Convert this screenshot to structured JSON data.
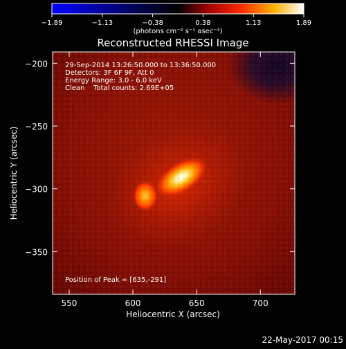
{
  "chart_data": {
    "type": "heatmap",
    "title": "Reconstructed RHESSI Image",
    "xlabel": "Heliocentric X (arcsec)",
    "ylabel": "Heliocentric Y (arcsec)",
    "xlim": [
      537,
      727
    ],
    "ylim": [
      -384,
      -191
    ],
    "x_ticks": [
      550,
      600,
      650,
      700
    ],
    "y_ticks": [
      -200,
      -250,
      -300,
      -350
    ],
    "x_tick_labels": [
      "550",
      "600",
      "650",
      "700"
    ],
    "y_tick_labels": [
      "−200",
      "−250",
      "−300",
      "−350"
    ],
    "colorbar": {
      "range": [
        -1.89,
        1.89
      ],
      "tick_labels": [
        "−1.89",
        "−1.13",
        "−0.38",
        "0.38",
        "1.13",
        "1.89"
      ],
      "units": "(photons cm⁻² s⁻¹ asec⁻²)",
      "colormap": "blue-black-red-yellow-white"
    },
    "annotations": [
      "29-Sep-2014 13:26:50.000 to 13:36:50.000",
      "Detectors: 3F 6F 9F, Att 0",
      "Energy Range: 3.0 - 6.0 keV",
      "Clean    Total counts: 2.69E+05"
    ],
    "peak_label": "Position of Peak = [635,-291]",
    "sources": [
      {
        "x": 635,
        "y": -291,
        "value": 1.89
      },
      {
        "x": 608,
        "y": -306,
        "value": 1.3
      }
    ],
    "background_level": 0.7
  },
  "footer": {
    "date": "22-May-2017 00:15"
  }
}
